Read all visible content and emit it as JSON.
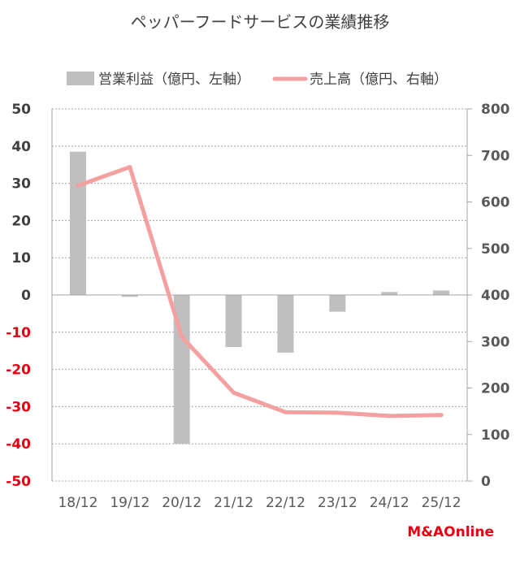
{
  "chart_data": {
    "type": "bar+line",
    "title": "ペッパーフードサービスの業績推移",
    "categories": [
      "18/12",
      "19/12",
      "20/12",
      "21/12",
      "22/12",
      "23/12",
      "24/12",
      "25/12"
    ],
    "series": [
      {
        "name": "営業利益（億円、左軸）",
        "type": "bar",
        "axis": "left",
        "color": "#bfbfbf",
        "values": [
          38.5,
          -0.5,
          -40,
          -14,
          -15.5,
          -4.5,
          0.8,
          1.2
        ]
      },
      {
        "name": "売上高（億円、右軸）",
        "type": "line",
        "axis": "right",
        "color": "#f4a0a0",
        "values": [
          635,
          675,
          310,
          190,
          148,
          147,
          140,
          142
        ]
      }
    ],
    "left_axis": {
      "min": -50,
      "max": 50,
      "ticks": [
        50,
        40,
        30,
        20,
        10,
        0,
        -10,
        -20,
        -30,
        -40,
        -50
      ],
      "positive_color": "#404040",
      "negative_color": "#e60012"
    },
    "right_axis": {
      "min": 0,
      "max": 800,
      "ticks": [
        800,
        700,
        600,
        500,
        400,
        300,
        200,
        100,
        0
      ]
    },
    "legend": {
      "position": "top",
      "items": [
        "営業利益（億円、左軸）",
        "売上高（億円、右軸）"
      ]
    },
    "grid": true
  },
  "brand": {
    "label": "M&AOnline",
    "color": "#e60012"
  }
}
